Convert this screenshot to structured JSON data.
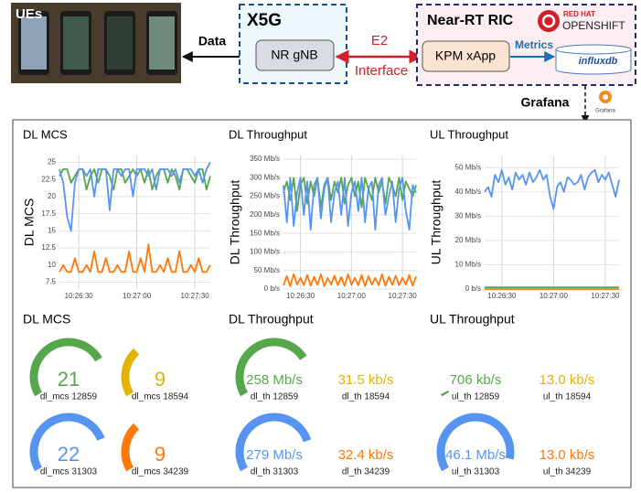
{
  "diagram": {
    "ues": "UEs",
    "data_link": "Data",
    "x5g": "X5G",
    "gnb": "NR gNB",
    "e2": "E2",
    "interface": "Interface",
    "ric": "Near-RT RIC",
    "redhat": "RED HAT",
    "openshift": "OPENSHIFT",
    "xapp": "KPM xApp",
    "metrics": "Metrics",
    "influxdb": "influxdb",
    "grafana": "Grafana",
    "grafana_logo": "Grafana"
  },
  "chart_data": [
    {
      "type": "line",
      "title": "DL MCS",
      "y_label": "DL MCS",
      "x": [
        "10:26:20",
        "10:26:22",
        "10:26:24",
        "10:26:26",
        "10:26:28",
        "10:26:30",
        "10:26:32",
        "10:26:34",
        "10:26:36",
        "10:26:38",
        "10:26:40",
        "10:26:42",
        "10:26:44",
        "10:26:46",
        "10:26:48",
        "10:26:50",
        "10:26:52",
        "10:26:54",
        "10:26:56",
        "10:26:58",
        "10:27:00",
        "10:27:02",
        "10:27:04",
        "10:27:06",
        "10:27:08",
        "10:27:10",
        "10:27:12",
        "10:27:14",
        "10:27:16",
        "10:27:18",
        "10:27:20",
        "10:27:22",
        "10:27:24",
        "10:27:26",
        "10:27:28",
        "10:27:30",
        "10:27:32",
        "10:27:34",
        "10:27:36",
        "10:27:38"
      ],
      "xlim": [
        "10:26:20",
        "10:27:38"
      ],
      "xticks": [
        "10:26:30",
        "10:27:00",
        "10:27:30"
      ],
      "ylim": [
        6.5,
        26
      ],
      "yticks": [
        7.5,
        10,
        12.5,
        15,
        17.5,
        20,
        22.5,
        25
      ],
      "grid": true,
      "series": [
        {
          "name": "dl_mcs 12859",
          "color": "#56a64b",
          "values": [
            23,
            24,
            24,
            22,
            23,
            24,
            24,
            21,
            23,
            24,
            22,
            24,
            24,
            23,
            21,
            24,
            24,
            22,
            23,
            24,
            23,
            24,
            22,
            24,
            21,
            23,
            24,
            24,
            22,
            24,
            23,
            21,
            24,
            24,
            23,
            22,
            24,
            24,
            21,
            23
          ]
        },
        {
          "name": "dl_mcs 31303",
          "color": "#5794f2",
          "values": [
            24,
            22,
            17,
            15,
            22,
            24,
            24,
            23,
            24,
            20,
            24,
            24,
            24,
            18,
            24,
            24,
            23,
            24,
            24,
            20,
            24,
            24,
            24,
            23,
            24,
            21,
            24,
            24,
            24,
            23,
            24,
            22,
            24,
            24,
            24,
            23,
            24,
            22,
            24,
            25
          ]
        },
        {
          "name": "dl_mcs 34239",
          "color": "#ff780a",
          "values": [
            9,
            10,
            9,
            9,
            11,
            9,
            9,
            10,
            9,
            12,
            9,
            9,
            11,
            9,
            9,
            10,
            9,
            9,
            12,
            9,
            9,
            11,
            9,
            13,
            9,
            9,
            10,
            9,
            11,
            9,
            9,
            12,
            9,
            9,
            10,
            9,
            11,
            9,
            9,
            10
          ]
        }
      ]
    },
    {
      "type": "line",
      "title": "DL Throughput",
      "y_label": "DL Throughput",
      "x": [
        "10:26:20",
        "10:26:22",
        "10:26:24",
        "10:26:26",
        "10:26:28",
        "10:26:30",
        "10:26:32",
        "10:26:34",
        "10:26:36",
        "10:26:38",
        "10:26:40",
        "10:26:42",
        "10:26:44",
        "10:26:46",
        "10:26:48",
        "10:26:50",
        "10:26:52",
        "10:26:54",
        "10:26:56",
        "10:26:58",
        "10:27:00",
        "10:27:02",
        "10:27:04",
        "10:27:06",
        "10:27:08",
        "10:27:10",
        "10:27:12",
        "10:27:14",
        "10:27:16",
        "10:27:18",
        "10:27:20",
        "10:27:22",
        "10:27:24",
        "10:27:26",
        "10:27:28",
        "10:27:30",
        "10:27:32",
        "10:27:34",
        "10:27:36",
        "10:27:38"
      ],
      "xlim": [
        "10:26:20",
        "10:27:38"
      ],
      "xticks": [
        "10:26:30",
        "10:27:00",
        "10:27:30"
      ],
      "ylim": [
        0,
        360
      ],
      "yticks": [
        {
          "value": 0,
          "label": "0 b/s"
        },
        {
          "value": 50,
          "label": "50 Mb/s"
        },
        {
          "value": 100,
          "label": "100 Mb/s"
        },
        {
          "value": 150,
          "label": "150 Mb/s"
        },
        {
          "value": 200,
          "label": "200 Mb/s"
        },
        {
          "value": 250,
          "label": "250 Mb/s"
        },
        {
          "value": 300,
          "label": "300 Mb/s"
        },
        {
          "value": 350,
          "label": "350 Mb/s"
        }
      ],
      "grid": true,
      "series": [
        {
          "name": "dl_th 12859",
          "color": "#56a64b",
          "values": [
            260,
            290,
            240,
            300,
            210,
            280,
            300,
            230,
            290,
            250,
            300,
            220,
            280,
            300,
            240,
            290,
            260,
            300,
            230,
            280,
            300,
            250,
            290,
            220,
            300,
            270,
            240,
            300,
            260,
            290,
            230,
            300,
            280,
            250,
            300,
            240,
            290,
            270,
            250,
            280
          ]
        },
        {
          "name": "dl_th 31303",
          "color": "#5794f2",
          "values": [
            280,
            180,
            300,
            170,
            260,
            300,
            200,
            290,
            160,
            280,
            300,
            190,
            270,
            300,
            180,
            260,
            290,
            200,
            300,
            170,
            260,
            290,
            210,
            300,
            180,
            270,
            290,
            160,
            280,
            300,
            200,
            250,
            290,
            180,
            270,
            300,
            210,
            160,
            280,
            260
          ]
        },
        {
          "name": "dl_th 34239",
          "color": "#ff780a",
          "values": [
            10,
            35,
            8,
            40,
            12,
            30,
            10,
            38,
            9,
            33,
            11,
            40,
            8,
            30,
            12,
            36,
            10,
            32,
            9,
            40,
            11,
            30,
            10,
            38,
            8,
            35,
            12,
            30,
            10,
            40,
            9,
            33,
            11,
            36,
            10,
            30,
            12,
            38,
            9,
            34
          ]
        }
      ]
    },
    {
      "type": "line",
      "title": "UL Throughput",
      "y_label": "UL Throughput",
      "x": [
        "10:26:20",
        "10:26:22",
        "10:26:24",
        "10:26:26",
        "10:26:28",
        "10:26:30",
        "10:26:32",
        "10:26:34",
        "10:26:36",
        "10:26:38",
        "10:26:40",
        "10:26:42",
        "10:26:44",
        "10:26:46",
        "10:26:48",
        "10:26:50",
        "10:26:52",
        "10:26:54",
        "10:26:56",
        "10:26:58",
        "10:27:00",
        "10:27:02",
        "10:27:04",
        "10:27:06",
        "10:27:08",
        "10:27:10",
        "10:27:12",
        "10:27:14",
        "10:27:16",
        "10:27:18",
        "10:27:20",
        "10:27:22",
        "10:27:24",
        "10:27:26",
        "10:27:28",
        "10:27:30",
        "10:27:32",
        "10:27:34",
        "10:27:36",
        "10:27:38"
      ],
      "xlim": [
        "10:26:20",
        "10:27:38"
      ],
      "xticks": [
        "10:26:30",
        "10:27:00",
        "10:27:30"
      ],
      "ylim": [
        0,
        55
      ],
      "yticks": [
        {
          "value": 0,
          "label": "0 b/s"
        },
        {
          "value": 10,
          "label": "10 Mb/s"
        },
        {
          "value": 20,
          "label": "20 Mb/s"
        },
        {
          "value": 30,
          "label": "30 Mb/s"
        },
        {
          "value": 40,
          "label": "40 Mb/s"
        },
        {
          "value": 50,
          "label": "50 Mb/s"
        }
      ],
      "grid": true,
      "series": [
        {
          "name": "ul_th 12859",
          "color": "#56a64b",
          "values": [
            0.7,
            0.7,
            0.7,
            0.7,
            0.7,
            0.7,
            0.7,
            0.7,
            0.7,
            0.7,
            0.7,
            0.7,
            0.7,
            0.7,
            0.7,
            0.7,
            0.7,
            0.7,
            0.7,
            0.7,
            0.7,
            0.7,
            0.7,
            0.7,
            0.7,
            0.7,
            0.7,
            0.7,
            0.7,
            0.7,
            0.7,
            0.7,
            0.7,
            0.7,
            0.7,
            0.7,
            0.7,
            0.7,
            0.7,
            0.7
          ]
        },
        {
          "name": "ul_th 34239",
          "color": "#ff780a",
          "values": [
            0.013,
            0.013,
            0.013,
            0.013,
            0.013,
            0.013,
            0.013,
            0.013,
            0.013,
            0.013,
            0.013,
            0.013,
            0.013,
            0.013,
            0.013,
            0.013,
            0.013,
            0.013,
            0.013,
            0.013,
            0.013,
            0.013,
            0.013,
            0.013,
            0.013,
            0.013,
            0.013,
            0.013,
            0.013,
            0.013,
            0.013,
            0.013,
            0.013,
            0.013,
            0.013,
            0.013,
            0.013,
            0.013,
            0.013,
            0.013
          ]
        },
        {
          "name": "ul_th 31303",
          "color": "#5794f2",
          "values": [
            40,
            42,
            38,
            47,
            44,
            49,
            43,
            46,
            41,
            48,
            45,
            47,
            43,
            48,
            44,
            46,
            49,
            45,
            47,
            38,
            33,
            42,
            44,
            40,
            46,
            45,
            43,
            44,
            47,
            41,
            46,
            48,
            49,
            44,
            47,
            45,
            48,
            43,
            38,
            45
          ]
        }
      ]
    },
    {
      "type": "gauge",
      "title": "DL MCS",
      "range": [
        0,
        28
      ],
      "items": [
        {
          "name": "dl_mcs 12859",
          "color": "#56a64b",
          "value": 21
        },
        {
          "name": "dl_mcs 18594",
          "color": "#e0b400",
          "value": 9
        },
        {
          "name": "dl_mcs 31303",
          "color": "#5794f2",
          "value": 22
        },
        {
          "name": "dl_mcs 34239",
          "color": "#ff780a",
          "value": 9
        }
      ]
    },
    {
      "type": "gauge",
      "title": "DL Throughput",
      "range": [
        0,
        350
      ],
      "items": [
        {
          "name": "dl_th 12859",
          "color": "#56a64b",
          "value": 258,
          "value_label": "258 Mb/s"
        },
        {
          "name": "dl_th 18594",
          "color": "#e0b400",
          "value": 0.0315,
          "value_label": "31.5 kb/s"
        },
        {
          "name": "dl_th 31303",
          "color": "#5794f2",
          "value": 279,
          "value_label": "279 Mb/s"
        },
        {
          "name": "dl_th 34239",
          "color": "#ff780a",
          "value": 0.0324,
          "value_label": "32.4 kb/s"
        }
      ]
    },
    {
      "type": "gauge",
      "title": "UL Throughput",
      "range": [
        0,
        50
      ],
      "items": [
        {
          "name": "ul_th 12859",
          "color": "#56a64b",
          "value": 0.706,
          "value_label": "706 kb/s"
        },
        {
          "name": "ul_th 18594",
          "color": "#e0b400",
          "value": 0.013,
          "value_label": "13.0 kb/s"
        },
        {
          "name": "ul_th 31303",
          "color": "#5794f2",
          "value": 46.1,
          "value_label": "46.1 Mb/s"
        },
        {
          "name": "ul_th 34239",
          "color": "#ff780a",
          "value": 0.013,
          "value_label": "13.0 kb/s"
        }
      ]
    }
  ]
}
